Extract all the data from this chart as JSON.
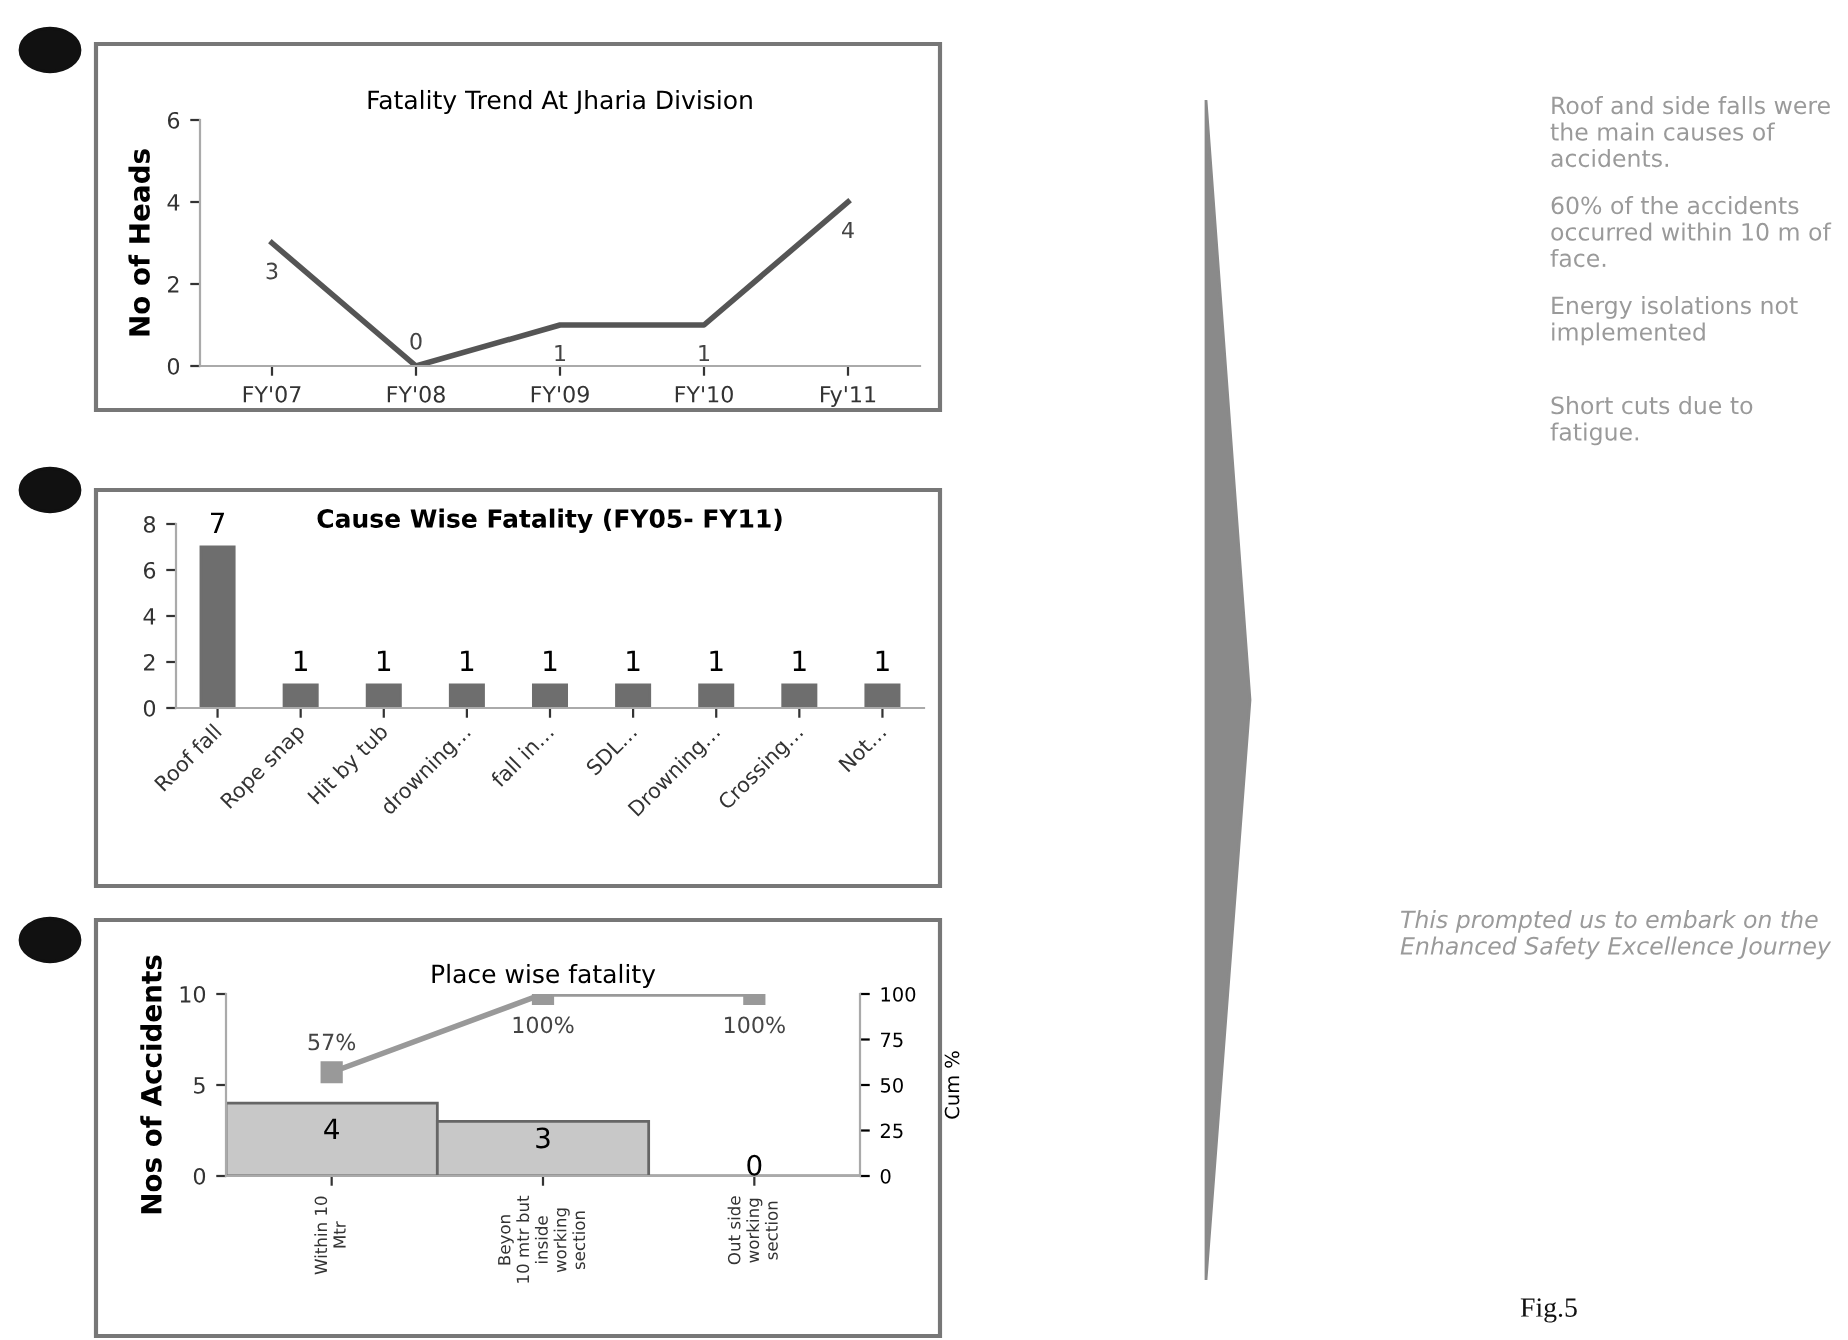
{
  "chart_data": [
    {
      "type": "line",
      "title": "Fatality Trend At Jharia Division",
      "ylabel": "No of Heads",
      "categories": [
        "FY'07",
        "FY'08",
        "FY'09",
        "FY'10",
        "Fy'11"
      ],
      "series": [
        {
          "color": "#555555",
          "values": [
            3,
            0,
            1,
            1,
            4
          ]
        }
      ],
      "ylim": [
        0,
        6
      ],
      "yticks": [
        0,
        2,
        4,
        6
      ],
      "data_labels": true
    },
    {
      "type": "bar",
      "title": "Cause Wise Fatality (FY05- FY11)",
      "categories": [
        "Roof fall",
        "Rope snap",
        "Hit by tub",
        "drowning…",
        "fall in…",
        "SDL…",
        "Drowning…",
        "Crossing…",
        "Not…"
      ],
      "series": [
        {
          "color": "#6e6e6e",
          "values": [
            7,
            1,
            1,
            1,
            1,
            1,
            1,
            1,
            1
          ]
        }
      ],
      "ylim": [
        0,
        8
      ],
      "yticks": [
        0,
        2,
        4,
        6,
        8
      ],
      "data_labels": true
    },
    {
      "type": "bar",
      "title": "Place wise fatality",
      "ylabel": "Nos of Accidents",
      "y2label": "Cum %",
      "categories": [
        "Within 10\nMtr",
        "Beyon\n10 mtr but\ninside\nworking\nsection",
        "Out side\nworking\nsection"
      ],
      "series": [
        {
          "type": "bar",
          "color": "#c8c8c8",
          "values": [
            4,
            3,
            0
          ],
          "value_labels": [
            "4",
            "3",
            "0"
          ]
        },
        {
          "type": "line",
          "axis": "y2",
          "color": "#999999",
          "marker": "square",
          "values": [
            57,
            100,
            100
          ],
          "value_labels": [
            "57%",
            "100%",
            "100%"
          ]
        }
      ],
      "ylim": [
        0,
        10
      ],
      "yticks": [
        0,
        5,
        10
      ],
      "y2lim": [
        0,
        100
      ],
      "y2ticks": [
        0,
        25,
        50,
        75,
        100
      ]
    },
    {
      "type": "other",
      "annotations": [
        "Roof and side falls were the main causes of accidents.",
        "60% of the accidents  occurred within 10 m of face.",
        "Energy isolations not implemented",
        "Short cuts due to fatigue.",
        "This prompted us to embark on the Enhanced Safety Excellence Journey",
        "Fig.5"
      ]
    }
  ]
}
